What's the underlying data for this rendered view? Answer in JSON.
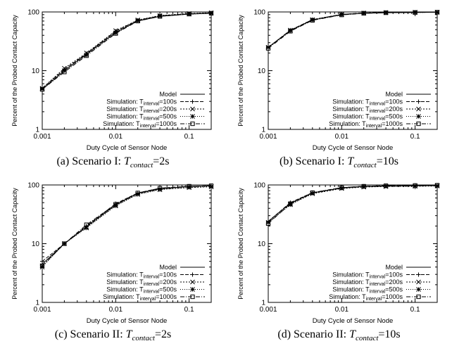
{
  "panels": [
    {
      "caption": {
        "label": "(a) Scenario I:",
        "symbol": "T",
        "subscript": "contact",
        "value": "=2s"
      },
      "chart_data": {
        "type": "line",
        "xlabel": "Duty Cycle of Sensor Node",
        "ylabel": "Percent of the Probed Contact Capacity",
        "x_scale": "log",
        "y_scale": "log",
        "xlim": [
          0.001,
          0.2
        ],
        "ylim": [
          1,
          100
        ],
        "xticks": [
          "0.001",
          "0.01",
          "0.1"
        ],
        "yticks": [
          "1",
          "10",
          "100"
        ],
        "legend_position": "bottom-right",
        "x": [
          0.001,
          0.002,
          0.004,
          0.01,
          0.02,
          0.04,
          0.1,
          0.2
        ],
        "series": [
          {
            "name": "Model",
            "values": [
              4.8,
              10,
              19,
              45,
              70,
              84,
              92,
              95
            ]
          },
          {
            "name": "Simulation: T_interval=100s",
            "values": [
              5,
              10.5,
              19.5,
              47,
              72,
              86,
              93,
              96
            ]
          },
          {
            "name": "Simulation: T_interval=200s",
            "values": [
              5,
              11,
              20,
              48,
              73,
              87,
              94,
              97
            ]
          },
          {
            "name": "Simulation: T_interval=500s",
            "values": [
              4.9,
              10,
              18.5,
              44,
              71,
              85,
              92,
              95
            ]
          },
          {
            "name": "Simulation: T_interval=1000s",
            "values": [
              4.8,
              9.5,
              18,
              43,
              70,
              84,
              92,
              95
            ]
          }
        ]
      }
    },
    {
      "caption": {
        "label": "(b) Scenario I:",
        "symbol": "T",
        "subscript": "contact",
        "value": "=10s"
      },
      "chart_data": {
        "type": "line",
        "xlabel": "Duty Cycle of Sensor Node",
        "ylabel": "Percent of the Probed Contact Capacity",
        "x_scale": "log",
        "y_scale": "log",
        "xlim": [
          0.001,
          0.2
        ],
        "ylim": [
          1,
          100
        ],
        "xticks": [
          "0.001",
          "0.01",
          "0.1"
        ],
        "yticks": [
          "1",
          "10",
          "100"
        ],
        "legend_position": "bottom-right",
        "x": [
          0.001,
          0.002,
          0.004,
          0.01,
          0.02,
          0.04,
          0.1,
          0.2
        ],
        "series": [
          {
            "name": "Model",
            "values": [
              25,
              48,
              73,
              90,
              95,
              97,
              98,
              99
            ]
          },
          {
            "name": "Simulation: T_interval=100s",
            "values": [
              25,
              49,
              74,
              91,
              96,
              98,
              99,
              99
            ]
          },
          {
            "name": "Simulation: T_interval=200s",
            "values": [
              25,
              49,
              74,
              91,
              96,
              98,
              99,
              99
            ]
          },
          {
            "name": "Simulation: T_interval=500s",
            "values": [
              25,
              48,
              73,
              90,
              95,
              97,
              98,
              99
            ]
          },
          {
            "name": "Simulation: T_interval=1000s",
            "values": [
              24,
              47,
              72,
              89,
              95,
              97,
              98,
              99
            ]
          }
        ]
      }
    },
    {
      "caption": {
        "label": "(c) Scenario II:",
        "symbol": "T",
        "subscript": "contact",
        "value": "=2s"
      },
      "chart_data": {
        "type": "line",
        "xlabel": "Duty Cycle of Sensor Node",
        "ylabel": "Percent of the Probed Contact Capacity",
        "x_scale": "log",
        "y_scale": "log",
        "xlim": [
          0.001,
          0.2
        ],
        "ylim": [
          1,
          100
        ],
        "xticks": [
          "0.001",
          "0.01",
          "0.1"
        ],
        "yticks": [
          "1",
          "10",
          "100"
        ],
        "legend_position": "bottom-right",
        "x": [
          0.001,
          0.002,
          0.004,
          0.01,
          0.02,
          0.04,
          0.1,
          0.2
        ],
        "series": [
          {
            "name": "Model",
            "values": [
              4.5,
              10,
              19.5,
              46,
              72,
              86,
              94,
              97
            ]
          },
          {
            "name": "Simulation: T_interval=100s",
            "values": [
              5,
              10,
              20,
              48,
              73,
              88,
              95,
              97
            ]
          },
          {
            "name": "Simulation: T_interval=200s",
            "values": [
              4.2,
              10,
              19,
              45,
              70,
              84,
              90,
              93
            ]
          },
          {
            "name": "Simulation: T_interval=500s",
            "values": [
              4,
              10,
              18.5,
              44,
              69,
              83,
              91,
              94
            ]
          },
          {
            "name": "Simulation: T_interval=1000s",
            "values": [
              4.2,
              10,
              21,
              47,
              73,
              88,
              95,
              97
            ]
          }
        ]
      }
    },
    {
      "caption": {
        "label": "(d) Scenario II:",
        "symbol": "T",
        "subscript": "contact",
        "value": "=10s"
      },
      "chart_data": {
        "type": "line",
        "xlabel": "Duty Cycle of Sensor Node",
        "ylabel": "Percent of the Probed Contact Capacity",
        "x_scale": "log",
        "y_scale": "log",
        "xlim": [
          0.001,
          0.2
        ],
        "ylim": [
          1,
          100
        ],
        "xticks": [
          "0.001",
          "0.01",
          "0.1"
        ],
        "yticks": [
          "1",
          "10",
          "100"
        ],
        "legend_position": "bottom-right",
        "x": [
          0.001,
          0.002,
          0.004,
          0.01,
          0.02,
          0.04,
          0.1,
          0.2
        ],
        "series": [
          {
            "name": "Model",
            "values": [
              24,
              49,
              73,
              89,
              94,
              96,
              97,
              98
            ]
          },
          {
            "name": "Simulation: T_interval=100s",
            "values": [
              24,
              50,
              74,
              90,
              95,
              97,
              98,
              99
            ]
          },
          {
            "name": "Simulation: T_interval=200s",
            "values": [
              23,
              47,
              71,
              87,
              92,
              94,
              95,
              96
            ]
          },
          {
            "name": "Simulation: T_interval=500s",
            "values": [
              23,
              46,
              72,
              88,
              93,
              95,
              96,
              97
            ]
          },
          {
            "name": "Simulation: T_interval=1000s",
            "values": [
              22,
              48,
              74,
              90,
              95,
              97,
              98,
              99
            ]
          }
        ]
      }
    }
  ]
}
